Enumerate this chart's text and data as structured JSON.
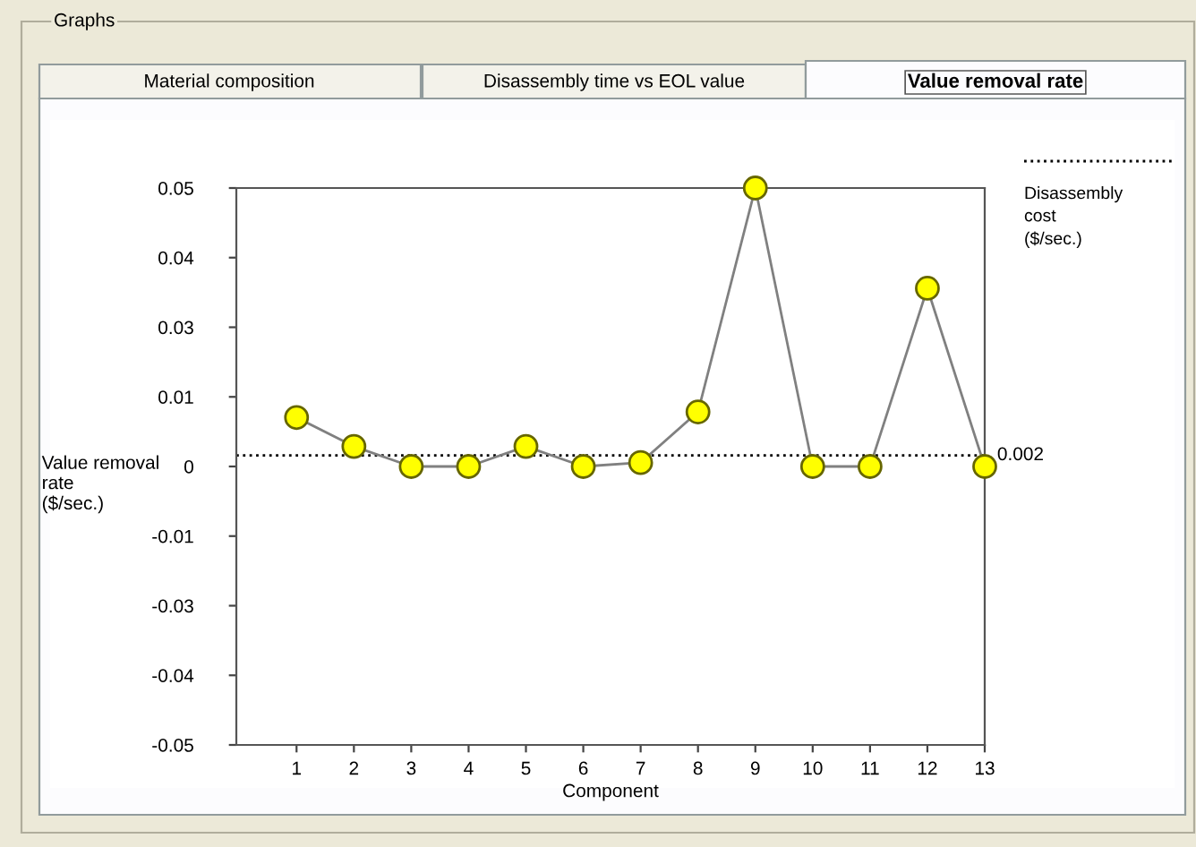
{
  "chart_data": {
    "type": "line",
    "title": "Value removal rate",
    "xlabel": "Component",
    "ylabel": "Value removal\nrate\n($/sec.)",
    "categories": [
      "1",
      "2",
      "3",
      "4",
      "5",
      "6",
      "7",
      "8",
      "9",
      "10",
      "11",
      "12",
      "13"
    ],
    "series": [
      {
        "color": "#ffff00",
        "values": [
          0.0088,
          0.0036,
          0,
          0,
          0.0036,
          0,
          0.0007,
          0.0098,
          0.05,
          0,
          0,
          0.032,
          0
        ]
      }
    ],
    "marker": "circle",
    "line_style": "solid",
    "ylim": [
      -0.05,
      0.05
    ],
    "yticks": [
      {
        "value": -0.05,
        "label": "-0.05"
      },
      {
        "value": -0.0375,
        "label": "-0.04"
      },
      {
        "value": -0.025,
        "label": "-0.03"
      },
      {
        "value": -0.0125,
        "label": "-0.01"
      },
      0,
      {
        "value": 0.0125,
        "label": "0.01"
      },
      {
        "value": 0.025,
        "label": "0.03"
      },
      {
        "value": 0.0375,
        "label": "0.04"
      },
      {
        "value": 0.05,
        "label": "0.05"
      }
    ],
    "ref_lines": [
      {
        "axis": "y",
        "value": 0.002,
        "label": "Disassembly\ncost\n($/sec.)",
        "line_style": "dotted",
        "color": "#000000"
      }
    ],
    "annotations": [
      "Graphs",
      "Material composition",
      "Disassembly time vs EOL value",
      {
        "text": "0.002",
        "x": "13",
        "y": 0.002
      }
    ],
    "legend": "top right",
    "grid": false
  }
}
